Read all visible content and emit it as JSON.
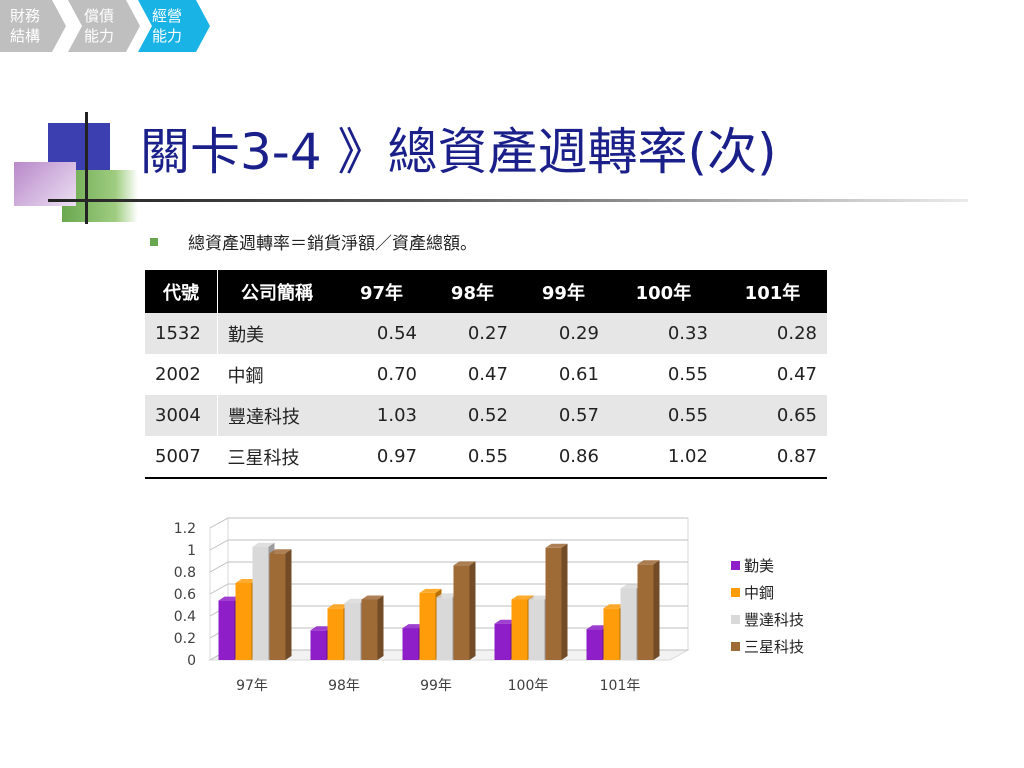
{
  "breadcrumbs": [
    {
      "label": "財務\n結構",
      "color": "#bfbfbf"
    },
    {
      "label": "償債\n能力",
      "color": "#bfbfbf"
    },
    {
      "label": "經營\n能力",
      "color": "#1ab3e6"
    }
  ],
  "title": "關卡3-4 》總資產週轉率(次)",
  "bullet": "總資產週轉率＝銷貨淨額／資產總額。",
  "table": {
    "headers": [
      "代號",
      "公司簡稱",
      "97年",
      "98年",
      "99年",
      "100年",
      "101年"
    ],
    "rows": [
      [
        "1532",
        "勤美",
        "0.54",
        "0.27",
        "0.29",
        "0.33",
        "0.28"
      ],
      [
        "2002",
        "中鋼",
        "0.70",
        "0.47",
        "0.61",
        "0.55",
        "0.47"
      ],
      [
        "3004",
        "豐達科技",
        "1.03",
        "0.52",
        "0.57",
        "0.55",
        "0.65"
      ],
      [
        "5007",
        "三星科技",
        "0.97",
        "0.55",
        "0.86",
        "1.02",
        "0.87"
      ]
    ]
  },
  "chart_data": {
    "type": "bar",
    "categories": [
      "97年",
      "98年",
      "99年",
      "100年",
      "101年"
    ],
    "series": [
      {
        "name": "勤美",
        "color": "#8e1ec8",
        "values": [
          0.54,
          0.27,
          0.29,
          0.33,
          0.28
        ]
      },
      {
        "name": "中鋼",
        "color": "#ff9c0a",
        "values": [
          0.7,
          0.47,
          0.61,
          0.55,
          0.47
        ]
      },
      {
        "name": "豐達科技",
        "color": "#d9d9d9",
        "values": [
          1.03,
          0.52,
          0.57,
          0.55,
          0.65
        ]
      },
      {
        "name": "三星科技",
        "color": "#9e6a36",
        "values": [
          0.97,
          0.55,
          0.86,
          1.02,
          0.87
        ]
      }
    ],
    "yticks": [
      "0",
      "0.2",
      "0.4",
      "0.6",
      "0.8",
      "1",
      "1.2"
    ],
    "ylim": [
      0,
      1.2
    ],
    "grid": true,
    "legend_position": "right"
  }
}
